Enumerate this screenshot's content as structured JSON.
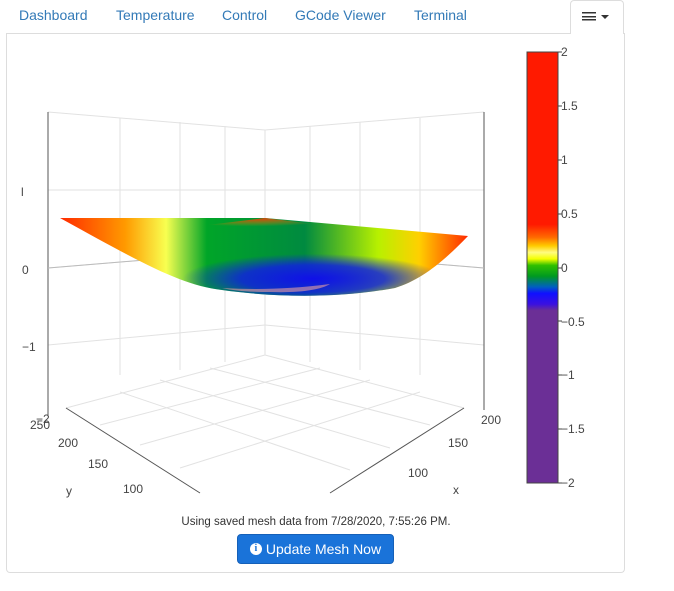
{
  "tabs": [
    {
      "label": "Dashboard"
    },
    {
      "label": "Temperature"
    },
    {
      "label": "Control"
    },
    {
      "label": "GCode Viewer"
    },
    {
      "label": "Terminal"
    }
  ],
  "menu_tab": {
    "icon": "hamburger-menu-icon",
    "dropdown": "caret-down-icon"
  },
  "colorbar": {
    "ticks": [
      "2",
      "1.5",
      "1",
      "0.5",
      "0",
      "−0.5",
      "−1",
      "−1.5",
      "−2"
    ],
    "colors": {
      "high": "#ff1a00",
      "mid": "#00a000",
      "low_blue": "#1010ff",
      "min": "#6b2f96"
    }
  },
  "axes": {
    "z": {
      "label": "l",
      "ticks": [
        "0",
        "−1",
        "−2"
      ]
    },
    "y": {
      "label": "y",
      "ticks": [
        "250",
        "200",
        "150",
        "100"
      ]
    },
    "x": {
      "label": "x",
      "ticks": [
        "200",
        "150",
        "100"
      ]
    }
  },
  "status": {
    "text": "Using saved mesh data from 7/28/2020, 7:55:26 PM."
  },
  "update_button": {
    "label": "Update Mesh Now",
    "icon": "info-circle-icon"
  }
}
